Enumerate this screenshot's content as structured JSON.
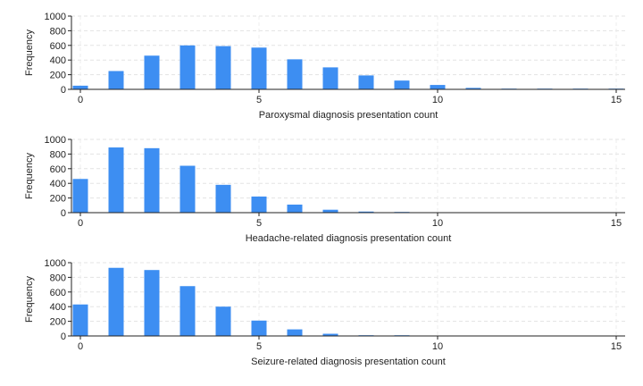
{
  "chart_data": [
    {
      "type": "bar",
      "xlabel": "Paroxysmal diagnosis presentation count",
      "ylabel": "Frequency",
      "ylim": [
        0,
        1000
      ],
      "yticks": [
        0,
        200,
        400,
        600,
        800,
        1000
      ],
      "xlim": [
        0,
        15
      ],
      "xticks": [
        0,
        5,
        10,
        15
      ],
      "grid": true,
      "bar_color": "#3d8ef2",
      "x": [
        0,
        1,
        2,
        3,
        4,
        5,
        6,
        7,
        8,
        9,
        10,
        11,
        12,
        13,
        14,
        15
      ],
      "values": [
        50,
        250,
        460,
        600,
        590,
        570,
        410,
        300,
        190,
        120,
        60,
        20,
        5,
        3,
        2,
        2
      ]
    },
    {
      "type": "bar",
      "xlabel": "Headache-related diagnosis presentation count",
      "ylabel": "Frequency",
      "ylim": [
        0,
        1000
      ],
      "yticks": [
        0,
        200,
        400,
        600,
        800,
        1000
      ],
      "xlim": [
        0,
        15
      ],
      "xticks": [
        0,
        5,
        10,
        15
      ],
      "grid": true,
      "bar_color": "#3d8ef2",
      "x": [
        0,
        1,
        2,
        3,
        4,
        5,
        6,
        7,
        8,
        9
      ],
      "values": [
        460,
        890,
        880,
        640,
        380,
        220,
        110,
        40,
        15,
        5
      ]
    },
    {
      "type": "bar",
      "xlabel": "Seizure-related diagnosis presentation count",
      "ylabel": "Frequency",
      "ylim": [
        0,
        1000
      ],
      "yticks": [
        0,
        200,
        400,
        600,
        800,
        1000
      ],
      "xlim": [
        0,
        15
      ],
      "xticks": [
        0,
        5,
        10,
        15
      ],
      "grid": true,
      "bar_color": "#3d8ef2",
      "x": [
        0,
        1,
        2,
        3,
        4,
        5,
        6,
        7,
        8,
        9
      ],
      "values": [
        430,
        930,
        900,
        680,
        400,
        210,
        90,
        30,
        10,
        5
      ]
    }
  ]
}
